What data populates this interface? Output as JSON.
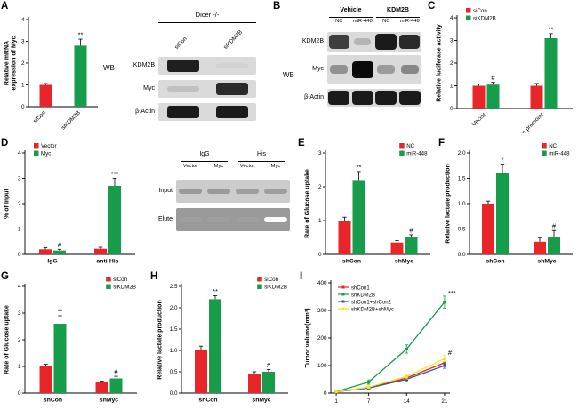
{
  "colors": {
    "red": "#e8262a",
    "green": "#169c4b",
    "blue": "#3a54a5",
    "yellow": "#f2e921"
  },
  "panels": [
    {
      "letter": "A"
    },
    {
      "letter": "B"
    },
    {
      "letter": "C"
    },
    {
      "letter": "D"
    },
    {
      "letter": "E"
    },
    {
      "letter": "F"
    },
    {
      "letter": "G"
    },
    {
      "letter": "H"
    },
    {
      "letter": "I"
    }
  ],
  "wb_a": {
    "side_label": "WB",
    "title": "Dicer -/-",
    "lanes": [
      "siCon",
      "siKDM2B"
    ],
    "rows": [
      {
        "name": "KDM2B",
        "bands": [
          0.9,
          0.04
        ]
      },
      {
        "name": "Myc",
        "bands": [
          0.12,
          0.85
        ]
      },
      {
        "name": "β-Actin",
        "bands": [
          0.92,
          0.92
        ]
      }
    ]
  },
  "wb_b": {
    "side_label": "WB",
    "groups": [
      "Vehicle",
      "KDM2B"
    ],
    "lanes": [
      "NC",
      "miR-448",
      "NC",
      "miR-448"
    ],
    "rows": [
      {
        "name": "KDM2B",
        "bands": [
          0.75,
          0.18,
          0.92,
          0.85
        ]
      },
      {
        "name": "Myc",
        "bands": [
          0.35,
          1.0,
          0.3,
          0.4
        ]
      },
      {
        "name": "β-Actin",
        "bands": [
          0.92,
          0.92,
          0.92,
          0.92
        ]
      }
    ]
  },
  "gel_d": {
    "groups": [
      "IgG",
      "His"
    ],
    "lanes": [
      "Vector",
      "Myc",
      "Vector",
      "Myc"
    ],
    "rows": [
      {
        "name": "Input",
        "bands": [
          0.3,
          0.3,
          0.28,
          0.28
        ],
        "inverted": false
      },
      {
        "name": "Elute",
        "bands": [
          0.05,
          0.05,
          0.05,
          0.95
        ],
        "inverted": true
      }
    ]
  },
  "chart_data": [
    {
      "id": "A",
      "type": "bar",
      "ylabel": "Relative mRNA expression of Myc",
      "ylabel_lines": [
        "Relative mRNA",
        "expression of Myc"
      ],
      "ylim": [
        0,
        4
      ],
      "yticks": [
        0,
        1,
        2,
        3,
        4
      ],
      "categories": [
        "siCon",
        "siKDM2B"
      ],
      "series": [
        {
          "name": "",
          "colors": [
            "#e8262a",
            "#169c4b"
          ],
          "values": [
            1.0,
            2.8
          ],
          "errors": [
            0.06,
            0.3
          ]
        }
      ],
      "annotations": [
        {
          "category": 1,
          "series": 0,
          "text": "**"
        }
      ],
      "legend_pos": null,
      "rotate_xticks": true
    },
    {
      "id": "C",
      "type": "bar",
      "ylabel": "Relative luciferase activity",
      "ylim": [
        0,
        4
      ],
      "yticks": [
        0,
        1,
        2,
        3,
        4
      ],
      "categories": [
        "Vector",
        "Myc promoter"
      ],
      "series": [
        {
          "name": "siCon",
          "color": "#e8262a",
          "values": [
            1.0,
            1.0
          ],
          "errors": [
            0.08,
            0.1
          ]
        },
        {
          "name": "siKDM2B",
          "color": "#169c4b",
          "values": [
            1.05,
            3.1
          ],
          "errors": [
            0.1,
            0.2
          ]
        }
      ],
      "annotations": [
        {
          "category": 0,
          "series": 1,
          "text": "#"
        },
        {
          "category": 1,
          "series": 1,
          "text": "**"
        }
      ],
      "legend_pos": "tl",
      "rotate_xticks": true
    },
    {
      "id": "D",
      "type": "bar",
      "ylabel": "% of Input",
      "ylim": [
        0,
        4
      ],
      "yticks": [
        0,
        1,
        2,
        3,
        4
      ],
      "categories": [
        "IgG",
        "anti-His"
      ],
      "series": [
        {
          "name": "Vector",
          "color": "#e8262a",
          "values": [
            0.2,
            0.22
          ],
          "errors": [
            0.06,
            0.06
          ]
        },
        {
          "name": "Myc",
          "color": "#169c4b",
          "values": [
            0.15,
            2.7
          ],
          "errors": [
            0.05,
            0.3
          ]
        }
      ],
      "annotations": [
        {
          "category": 0,
          "series": 1,
          "text": "#"
        },
        {
          "category": 1,
          "series": 1,
          "text": "***"
        }
      ],
      "legend_pos": "tl",
      "xbold": true
    },
    {
      "id": "E",
      "type": "bar",
      "ylabel": "Rate of Glucose uptake",
      "ylim": [
        0,
        3
      ],
      "yticks": [
        0,
        1,
        2,
        3
      ],
      "categories": [
        "shCon",
        "shMyc"
      ],
      "series": [
        {
          "name": "NC",
          "color": "#e8262a",
          "values": [
            1.0,
            0.35
          ],
          "errors": [
            0.1,
            0.06
          ]
        },
        {
          "name": "miR-448",
          "color": "#169c4b",
          "values": [
            2.2,
            0.5
          ],
          "errors": [
            0.25,
            0.08
          ]
        }
      ],
      "annotations": [
        {
          "category": 0,
          "series": 1,
          "text": "**"
        },
        {
          "category": 1,
          "series": 1,
          "text": "#"
        }
      ],
      "legend_pos": "tr",
      "xbold": true
    },
    {
      "id": "F",
      "type": "bar",
      "ylabel": "Relative lactate production",
      "ylim": [
        0,
        2
      ],
      "yticks": [
        0,
        0.5,
        1,
        1.5,
        2
      ],
      "ydecimals": 1,
      "categories": [
        "shCon",
        "shMyc"
      ],
      "series": [
        {
          "name": "NC",
          "color": "#e8262a",
          "values": [
            1.0,
            0.25
          ],
          "errors": [
            0.05,
            0.08
          ]
        },
        {
          "name": "miR-448",
          "color": "#169c4b",
          "values": [
            1.6,
            0.35
          ],
          "errors": [
            0.18,
            0.12
          ]
        }
      ],
      "annotations": [
        {
          "category": 0,
          "series": 1,
          "text": "*"
        },
        {
          "category": 1,
          "series": 1,
          "text": "#"
        }
      ],
      "legend_pos": "tr",
      "xbold": true
    },
    {
      "id": "G",
      "type": "bar",
      "ylabel": "Rate of Glucose uptake",
      "ylim": [
        0,
        4
      ],
      "yticks": [
        0,
        1,
        2,
        3,
        4
      ],
      "categories": [
        "shCon",
        "shMyc"
      ],
      "series": [
        {
          "name": "siCon",
          "color": "#e8262a",
          "values": [
            1.0,
            0.4
          ],
          "errors": [
            0.08,
            0.05
          ]
        },
        {
          "name": "siKDM2B",
          "color": "#169c4b",
          "values": [
            2.6,
            0.55
          ],
          "errors": [
            0.3,
            0.08
          ]
        }
      ],
      "annotations": [
        {
          "category": 0,
          "series": 1,
          "text": "**"
        },
        {
          "category": 1,
          "series": 1,
          "text": "#"
        }
      ],
      "legend_pos": "tr",
      "xbold": true
    },
    {
      "id": "H",
      "type": "bar",
      "ylabel": "Relative lactate production",
      "ylim": [
        0,
        2.5
      ],
      "yticks": [
        0,
        0.5,
        1,
        1.5,
        2,
        2.5
      ],
      "ydecimals": 1,
      "categories": [
        "shCon",
        "shMyc"
      ],
      "series": [
        {
          "name": "siCon",
          "color": "#e8262a",
          "values": [
            1.0,
            0.45
          ],
          "errors": [
            0.1,
            0.05
          ]
        },
        {
          "name": "siKDM2B",
          "color": "#169c4b",
          "values": [
            2.2,
            0.5
          ],
          "errors": [
            0.08,
            0.05
          ]
        }
      ],
      "annotations": [
        {
          "category": 0,
          "series": 1,
          "text": "**"
        },
        {
          "category": 1,
          "series": 1,
          "text": "#"
        }
      ],
      "legend_pos": "tr",
      "xbold": true
    },
    {
      "id": "I",
      "type": "line",
      "ylabel": "Tumor volume(mm³)",
      "ylim": [
        0,
        400
      ],
      "yticks": [
        0,
        100,
        200,
        300,
        400
      ],
      "x": [
        1,
        7,
        14,
        21
      ],
      "series": [
        {
          "name": "shCon1",
          "color": "#e8262a",
          "values": [
            5,
            20,
            55,
            110
          ],
          "errors": [
            2,
            5,
            8,
            12
          ]
        },
        {
          "name": "shKDM2B",
          "color": "#169c4b",
          "values": [
            5,
            40,
            160,
            330
          ],
          "errors": [
            2,
            8,
            15,
            22
          ]
        },
        {
          "name": "shCon1+shCon2",
          "color": "#3a54a5",
          "values": [
            5,
            18,
            50,
            100
          ],
          "errors": [
            2,
            5,
            8,
            10
          ]
        },
        {
          "name": "shKDM2B+shMyc",
          "color": "#f2e921",
          "values": [
            5,
            22,
            60,
            125
          ],
          "errors": [
            2,
            5,
            8,
            12
          ]
        }
      ],
      "annotations": [
        {
          "text": "***",
          "x": 21,
          "y": 355
        },
        {
          "text": "#",
          "x": 21,
          "y": 138
        }
      ],
      "legend_pos": "tl"
    }
  ]
}
